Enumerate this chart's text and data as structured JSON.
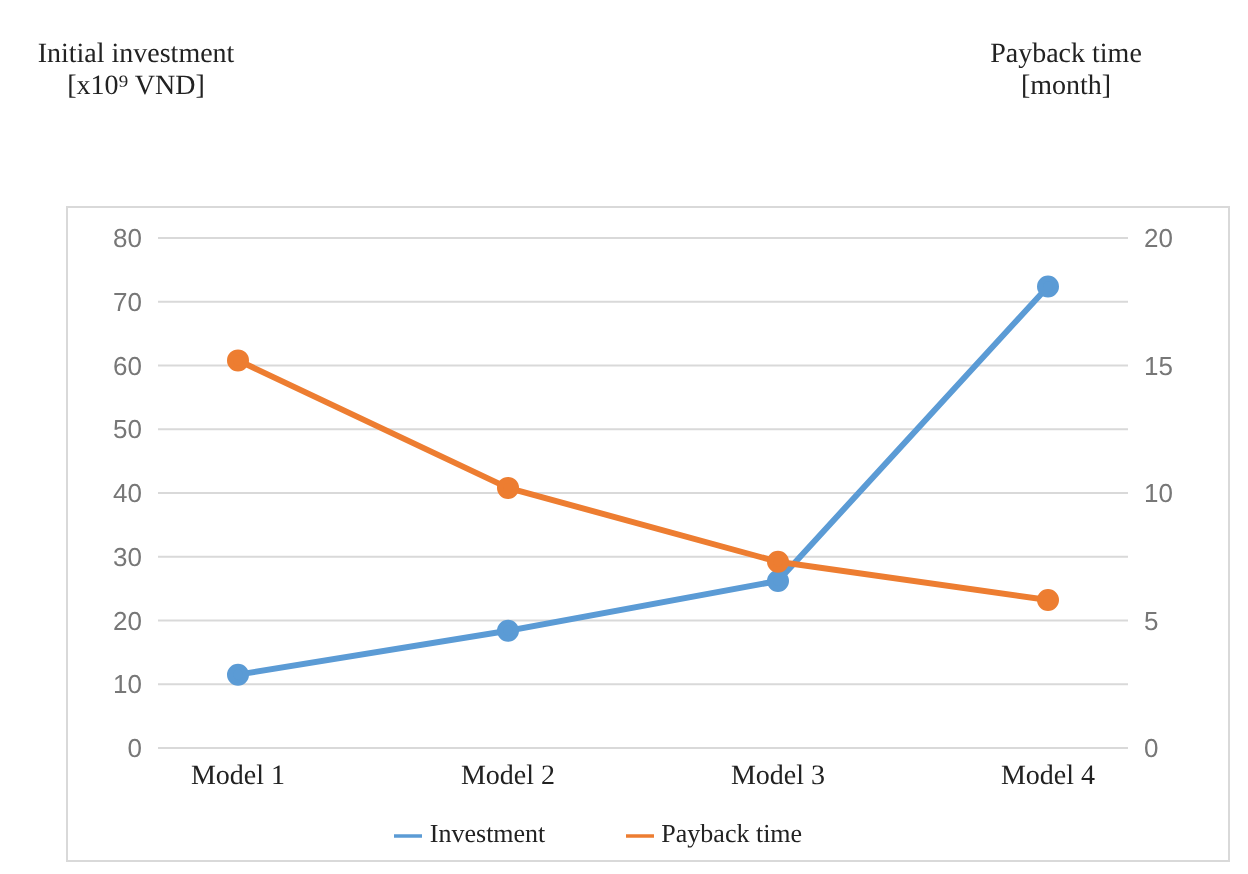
{
  "chart_data": {
    "type": "line",
    "ylabel": "Initial investment\n[x10⁹ VND]",
    "y2label": "Payback time\n[month]",
    "categories": [
      "Model 1",
      "Model 2",
      "Model 3",
      "Model 4"
    ],
    "series": [
      {
        "name": "Investment",
        "color": "#5b9bd5",
        "values": [
          11.5,
          18.4,
          26.2,
          72.4
        ]
      },
      {
        "name": "Payback time",
        "color": "#ed7d31",
        "axis": "y2",
        "values": [
          15.2,
          10.2,
          7.3,
          5.8
        ]
      }
    ],
    "ylim": [
      0,
      80
    ],
    "yticks": [
      0,
      10,
      20,
      30,
      40,
      50,
      60,
      70,
      80
    ],
    "y2lim": [
      0,
      20
    ],
    "y2ticks": [
      0,
      5,
      10,
      15,
      20
    ],
    "grid": "y",
    "legend": "bottom",
    "marker": "circle",
    "line_style": "solid"
  }
}
